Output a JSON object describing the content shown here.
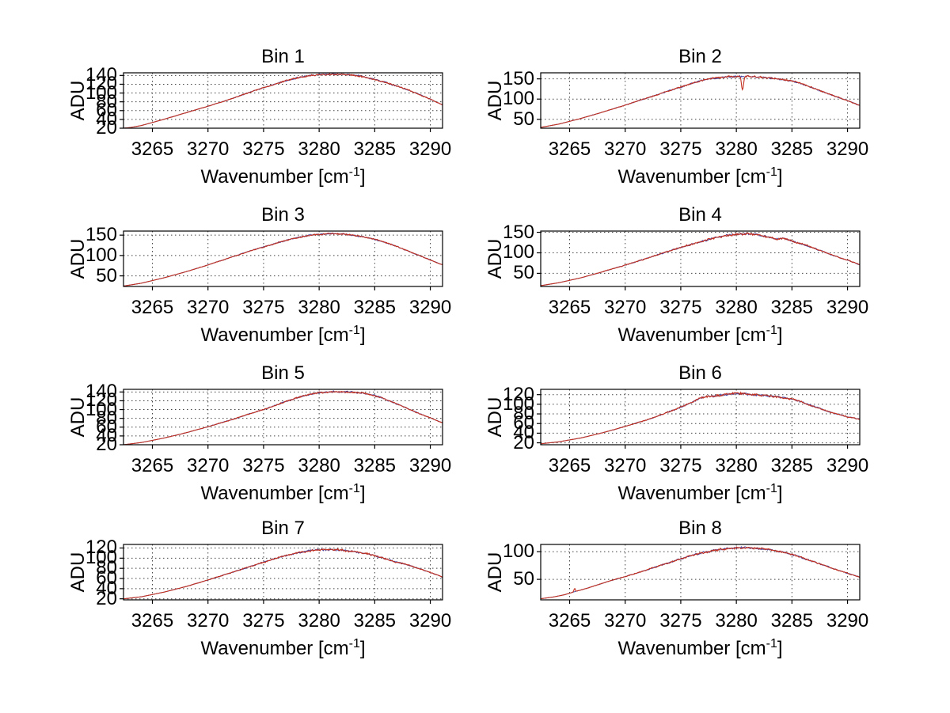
{
  "figure": {
    "background": "#ffffff",
    "axis_color": "#000000",
    "grid_color": "#444444",
    "text_color": "#000000",
    "trace_color": "#c23120",
    "trace_underlay_color": "#4040a0"
  },
  "labels": {
    "ylabel": "ADU",
    "xlabel": "Wavenumber [cm⁻¹]",
    "xlabel_main": "Wavenumber [cm",
    "xlabel_sup": "-1",
    "xlabel_close": "]"
  },
  "chart_data": [
    {
      "type": "line",
      "title": "Bin 1",
      "xlabel": "Wavenumber [cm⁻¹]",
      "ylabel": "ADU",
      "xlim": [
        3262.4,
        3291.1
      ],
      "ylim": [
        20,
        146
      ],
      "grid": true,
      "xticks": [
        3265,
        3270,
        3275,
        3280,
        3285,
        3290
      ],
      "yticks": [
        20,
        40,
        60,
        80,
        100,
        120,
        140
      ],
      "noise": 2.3,
      "spike": null,
      "anchors": [
        [
          3262.4,
          20
        ],
        [
          3263,
          21.5
        ],
        [
          3264,
          26
        ],
        [
          3265,
          33
        ],
        [
          3266,
          40
        ],
        [
          3267,
          47.5
        ],
        [
          3268,
          55
        ],
        [
          3269,
          62.5
        ],
        [
          3270,
          70
        ],
        [
          3271,
          78
        ],
        [
          3272,
          86
        ],
        [
          3273,
          95
        ],
        [
          3274,
          104
        ],
        [
          3275,
          112
        ],
        [
          3276,
          120
        ],
        [
          3277,
          128
        ],
        [
          3278,
          134
        ],
        [
          3279,
          139
        ],
        [
          3280,
          142
        ],
        [
          3281,
          143
        ],
        [
          3282,
          142.5
        ],
        [
          3283,
          141
        ],
        [
          3284,
          137
        ],
        [
          3285,
          131
        ],
        [
          3286,
          124
        ],
        [
          3287,
          116
        ],
        [
          3288,
          107
        ],
        [
          3289,
          97
        ],
        [
          3290,
          86
        ],
        [
          3291.1,
          73
        ]
      ]
    },
    {
      "type": "line",
      "title": "Bin 2",
      "xlabel": "Wavenumber [cm⁻¹]",
      "ylabel": "ADU",
      "xlim": [
        3262.4,
        3291.1
      ],
      "ylim": [
        28,
        165
      ],
      "grid": true,
      "xticks": [
        3265,
        3270,
        3275,
        3280,
        3285,
        3290
      ],
      "yticks": [
        50,
        100,
        150
      ],
      "noise": 2.6,
      "spike": {
        "x": 3280.55,
        "amp": -34,
        "sigma": 0.09
      },
      "anchors": [
        [
          3262.4,
          30
        ],
        [
          3264,
          38
        ],
        [
          3266,
          52
        ],
        [
          3268,
          68
        ],
        [
          3270,
          85
        ],
        [
          3272,
          103
        ],
        [
          3274,
          121
        ],
        [
          3275,
          130
        ],
        [
          3276,
          139
        ],
        [
          3277,
          147
        ],
        [
          3278,
          152
        ],
        [
          3279,
          155
        ],
        [
          3280,
          156
        ],
        [
          3281,
          156
        ],
        [
          3282,
          154.5
        ],
        [
          3283,
          152.5
        ],
        [
          3284,
          149
        ],
        [
          3285,
          144
        ],
        [
          3285.7,
          140
        ],
        [
          3286.5,
          131
        ],
        [
          3287.5,
          121
        ],
        [
          3288.5,
          111
        ],
        [
          3289.5,
          101
        ],
        [
          3290.5,
          91
        ],
        [
          3291.1,
          84
        ]
      ]
    },
    {
      "type": "line",
      "title": "Bin 3",
      "xlabel": "Wavenumber [cm⁻¹]",
      "ylabel": "ADU",
      "xlim": [
        3262.4,
        3291.1
      ],
      "ylim": [
        24,
        160
      ],
      "grid": true,
      "xticks": [
        3265,
        3270,
        3275,
        3280,
        3285,
        3290
      ],
      "yticks": [
        50,
        100,
        150
      ],
      "noise": 2.2,
      "spike": null,
      "anchors": [
        [
          3262.4,
          25
        ],
        [
          3264,
          32
        ],
        [
          3266,
          45
        ],
        [
          3268,
          60
        ],
        [
          3270,
          77
        ],
        [
          3272,
          95
        ],
        [
          3274,
          113
        ],
        [
          3275,
          121
        ],
        [
          3276,
          129
        ],
        [
          3277,
          137
        ],
        [
          3278,
          144
        ],
        [
          3279,
          149
        ],
        [
          3280,
          152
        ],
        [
          3281,
          153.5
        ],
        [
          3282,
          153
        ],
        [
          3283,
          150
        ],
        [
          3284,
          146
        ],
        [
          3285,
          140
        ],
        [
          3286,
          132
        ],
        [
          3287,
          122
        ],
        [
          3288,
          111
        ],
        [
          3289,
          100
        ],
        [
          3290,
          89
        ],
        [
          3291.1,
          77
        ]
      ]
    },
    {
      "type": "line",
      "title": "Bin 4",
      "xlabel": "Wavenumber [cm⁻¹]",
      "ylabel": "ADU",
      "xlim": [
        3262.4,
        3291.1
      ],
      "ylim": [
        18,
        153
      ],
      "grid": true,
      "xticks": [
        3265,
        3270,
        3275,
        3280,
        3285,
        3290
      ],
      "yticks": [
        50,
        100,
        150
      ],
      "noise": 3.0,
      "spike": null,
      "anchors": [
        [
          3262.4,
          20
        ],
        [
          3264,
          27
        ],
        [
          3266,
          39
        ],
        [
          3268,
          54
        ],
        [
          3270,
          70
        ],
        [
          3272,
          87
        ],
        [
          3274,
          105
        ],
        [
          3275,
          113
        ],
        [
          3276,
          121
        ],
        [
          3277,
          129
        ],
        [
          3278,
          136
        ],
        [
          3279,
          142
        ],
        [
          3280,
          145
        ],
        [
          3281,
          146
        ],
        [
          3282,
          143
        ],
        [
          3283,
          138
        ],
        [
          3283.6,
          133
        ],
        [
          3284.2,
          136
        ],
        [
          3285,
          129
        ],
        [
          3286,
          121
        ],
        [
          3287,
          111
        ],
        [
          3288,
          101
        ],
        [
          3289,
          91
        ],
        [
          3290,
          82
        ],
        [
          3291.1,
          71
        ]
      ]
    },
    {
      "type": "line",
      "title": "Bin 5",
      "xlabel": "Wavenumber [cm⁻¹]",
      "ylabel": "ADU",
      "xlim": [
        3262.4,
        3291.1
      ],
      "ylim": [
        20,
        146
      ],
      "grid": true,
      "xticks": [
        3265,
        3270,
        3275,
        3280,
        3285,
        3290
      ],
      "yticks": [
        20,
        40,
        60,
        80,
        100,
        120,
        140
      ],
      "noise": 2.3,
      "spike": null,
      "anchors": [
        [
          3262.4,
          20
        ],
        [
          3264,
          25
        ],
        [
          3266,
          35
        ],
        [
          3268,
          47
        ],
        [
          3270,
          61
        ],
        [
          3272,
          76
        ],
        [
          3274,
          92
        ],
        [
          3275,
          100
        ],
        [
          3276,
          109
        ],
        [
          3277,
          118
        ],
        [
          3278,
          127
        ],
        [
          3279,
          134
        ],
        [
          3280,
          138
        ],
        [
          3281,
          140.5
        ],
        [
          3282,
          140.5
        ],
        [
          3283,
          139.5
        ],
        [
          3284,
          137.5
        ],
        [
          3285,
          132
        ],
        [
          3286,
          123
        ],
        [
          3287,
          113
        ],
        [
          3288,
          102
        ],
        [
          3289,
          91
        ],
        [
          3290,
          81
        ],
        [
          3291.1,
          70
        ]
      ]
    },
    {
      "type": "line",
      "title": "Bin 6",
      "xlabel": "Wavenumber [cm⁻¹]",
      "ylabel": "ADU",
      "xlim": [
        3262.4,
        3291.1
      ],
      "ylim": [
        16,
        131
      ],
      "grid": true,
      "xticks": [
        3265,
        3270,
        3275,
        3280,
        3285,
        3290
      ],
      "yticks": [
        20,
        40,
        60,
        80,
        100,
        120
      ],
      "noise": 2.8,
      "spike": null,
      "anchors": [
        [
          3262.4,
          18
        ],
        [
          3264,
          22
        ],
        [
          3266,
          30
        ],
        [
          3268,
          41
        ],
        [
          3270,
          54
        ],
        [
          3272,
          68
        ],
        [
          3273,
          76
        ],
        [
          3274,
          85
        ],
        [
          3275,
          94
        ],
        [
          3276,
          104
        ],
        [
          3276.6,
          112
        ],
        [
          3277.3,
          116
        ],
        [
          3278,
          117
        ],
        [
          3279,
          120
        ],
        [
          3280,
          123
        ],
        [
          3281,
          121
        ],
        [
          3282,
          119
        ],
        [
          3283,
          117.5
        ],
        [
          3284,
          114.5
        ],
        [
          3285,
          111
        ],
        [
          3285.6,
          107
        ],
        [
          3286.4,
          100
        ],
        [
          3287.2,
          94
        ],
        [
          3288,
          87
        ],
        [
          3289,
          80
        ],
        [
          3290,
          74
        ],
        [
          3291.1,
          69
        ]
      ]
    },
    {
      "type": "line",
      "title": "Bin 7",
      "xlabel": "Wavenumber [cm⁻¹]",
      "ylabel": "ADU",
      "xlim": [
        3262.4,
        3291.1
      ],
      "ylim": [
        18,
        127
      ],
      "grid": true,
      "xticks": [
        3265,
        3270,
        3275,
        3280,
        3285,
        3290
      ],
      "yticks": [
        20,
        40,
        60,
        80,
        100,
        120
      ],
      "noise": 2.2,
      "spike": null,
      "anchors": [
        [
          3262.4,
          20
        ],
        [
          3264,
          24
        ],
        [
          3266,
          33
        ],
        [
          3268,
          44
        ],
        [
          3270,
          57
        ],
        [
          3272,
          71
        ],
        [
          3274,
          85
        ],
        [
          3275,
          92
        ],
        [
          3276,
          99
        ],
        [
          3277,
          105
        ],
        [
          3278,
          110
        ],
        [
          3279,
          114
        ],
        [
          3280,
          116.5
        ],
        [
          3281,
          117
        ],
        [
          3282,
          116
        ],
        [
          3283,
          113.5
        ],
        [
          3284,
          110
        ],
        [
          3285,
          105
        ],
        [
          3286,
          99
        ],
        [
          3286.8,
          93
        ],
        [
          3287.6,
          89
        ],
        [
          3288.4,
          84
        ],
        [
          3289.2,
          78
        ],
        [
          3290,
          72
        ],
        [
          3291.1,
          63
        ]
      ]
    },
    {
      "type": "line",
      "title": "Bin 8",
      "xlabel": "Wavenumber [cm⁻¹]",
      "ylabel": "ADU",
      "xlim": [
        3262.4,
        3291.1
      ],
      "ylim": [
        13,
        113
      ],
      "grid": true,
      "xticks": [
        3265,
        3270,
        3275,
        3280,
        3285,
        3290
      ],
      "yticks": [
        50,
        100
      ],
      "noise": 2.2,
      "spike": {
        "x": 3265.45,
        "amp": 6,
        "sigma": 0.06
      },
      "anchors": [
        [
          3262.4,
          15
        ],
        [
          3263.5,
          18
        ],
        [
          3264.5,
          22
        ],
        [
          3265.5,
          28
        ],
        [
          3266.5,
          33.5
        ],
        [
          3267.5,
          40
        ],
        [
          3268.5,
          46.5
        ],
        [
          3270,
          55
        ],
        [
          3271,
          61
        ],
        [
          3272,
          67.5
        ],
        [
          3273,
          74
        ],
        [
          3274,
          80.5
        ],
        [
          3275,
          87
        ],
        [
          3276,
          93
        ],
        [
          3277,
          98
        ],
        [
          3278,
          102
        ],
        [
          3279,
          105
        ],
        [
          3280,
          107
        ],
        [
          3281,
          107.5
        ],
        [
          3282,
          105.5
        ],
        [
          3283,
          103.5
        ],
        [
          3284,
          100
        ],
        [
          3285,
          95
        ],
        [
          3286,
          88.5
        ],
        [
          3287,
          81.5
        ],
        [
          3288,
          74.5
        ],
        [
          3289,
          67.5
        ],
        [
          3290,
          61
        ],
        [
          3291.1,
          54
        ]
      ]
    }
  ]
}
